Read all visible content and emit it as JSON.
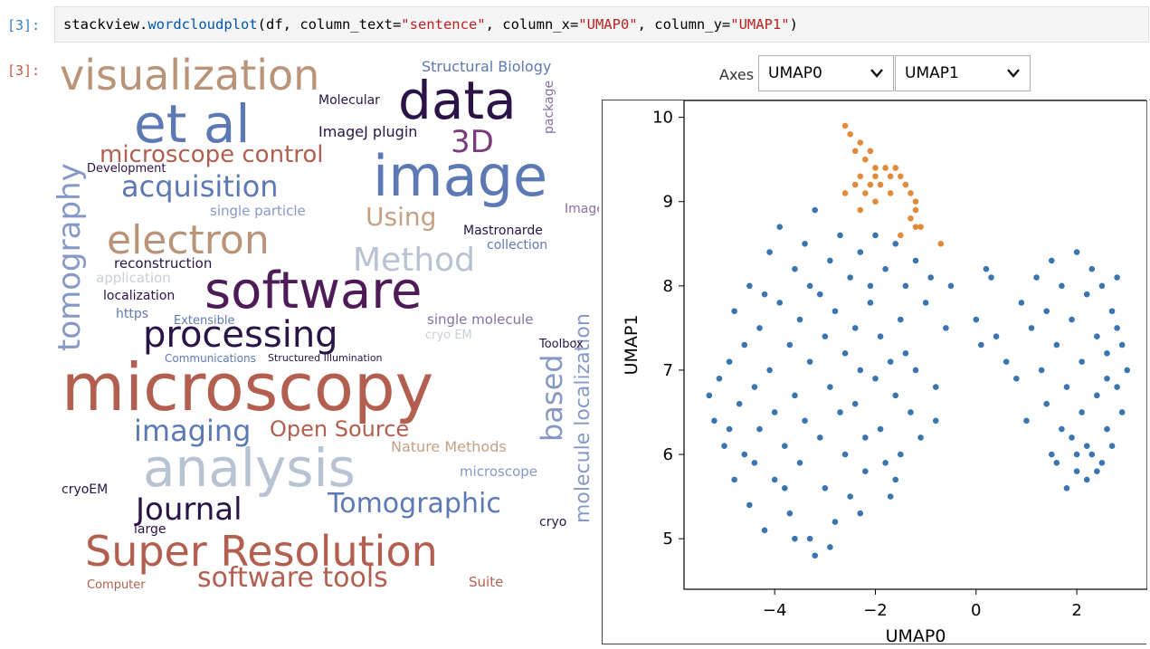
{
  "cells": {
    "input_prompt": "[3]:",
    "output_prompt": "[3]:",
    "code": {
      "p1": "stackview.",
      "p2": "wordcloudplot",
      "p3": "(df, column_text=",
      "p4": "\"sentence\"",
      "p5": ", column_x=",
      "p6": "\"UMAP0\"",
      "p7": ", column_y=",
      "p8": "\"UMAP1\"",
      "p9": ")"
    }
  },
  "axes_widget": {
    "label": "Axes",
    "x_select": "UMAP0",
    "y_select": "UMAP1",
    "chevron_icon": "chevron-down-icon"
  },
  "wordcloud": {
    "words": [
      {
        "text": "visualization",
        "size": 46,
        "color": "#b99478",
        "x": 6,
        "y": 2
      },
      {
        "text": "data",
        "size": 58,
        "color": "#2a1347",
        "x": 380,
        "y": 24
      },
      {
        "text": "et al",
        "size": 58,
        "color": "#5d79b5",
        "x": 88,
        "y": 50
      },
      {
        "text": "3D",
        "size": 34,
        "color": "#7b3a7e",
        "x": 438,
        "y": 82
      },
      {
        "text": "Structural Biology",
        "size": 16,
        "color": "#5d79b5",
        "x": 406,
        "y": 8
      },
      {
        "text": "Molecular",
        "size": 14,
        "color": "#2a1347",
        "x": 292,
        "y": 46
      },
      {
        "text": "package",
        "size": 14,
        "color": "#8a6fa3",
        "x": 540,
        "y": 90,
        "rotate": -90
      },
      {
        "text": "image",
        "size": 62,
        "color": "#5d79b5",
        "x": 352,
        "y": 106
      },
      {
        "text": "ImageJ plugin",
        "size": 16,
        "color": "#2a1347",
        "x": 292,
        "y": 80
      },
      {
        "text": "microscope control",
        "size": 26,
        "color": "#b35f50",
        "x": 50,
        "y": 100
      },
      {
        "text": "acquisition",
        "size": 32,
        "color": "#5d79b5",
        "x": 74,
        "y": 132
      },
      {
        "text": "Development",
        "size": 13,
        "color": "#2a1347",
        "x": 36,
        "y": 122
      },
      {
        "text": "tomography",
        "size": 34,
        "color": "#8699c6",
        "x": 0,
        "y": 330,
        "rotate": -90
      },
      {
        "text": "Using",
        "size": 28,
        "color": "#c6a085",
        "x": 344,
        "y": 168
      },
      {
        "text": "ImageJ",
        "size": 14,
        "color": "#8a6fa3",
        "x": 564,
        "y": 166
      },
      {
        "text": "single particle",
        "size": 15,
        "color": "#8699c6",
        "x": 172,
        "y": 168
      },
      {
        "text": "electron",
        "size": 44,
        "color": "#b99478",
        "x": 58,
        "y": 186
      },
      {
        "text": "Method",
        "size": 36,
        "color": "#b7c2d3",
        "x": 330,
        "y": 212
      },
      {
        "text": "Mastronarde",
        "size": 14,
        "color": "#2a1347",
        "x": 452,
        "y": 190
      },
      {
        "text": "collection",
        "size": 14,
        "color": "#5d79b5",
        "x": 478,
        "y": 206
      },
      {
        "text": "reconstruction",
        "size": 15,
        "color": "#2a1347",
        "x": 66,
        "y": 226
      },
      {
        "text": "application",
        "size": 15,
        "color": "#c9cfd9",
        "x": 46,
        "y": 242
      },
      {
        "text": "software",
        "size": 56,
        "color": "#4e1a58",
        "x": 166,
        "y": 236
      },
      {
        "text": "localization",
        "size": 14,
        "color": "#2a1347",
        "x": 54,
        "y": 262
      },
      {
        "text": "https",
        "size": 14,
        "color": "#5d79b5",
        "x": 68,
        "y": 282
      },
      {
        "text": "molecule localization",
        "size": 22,
        "color": "#8699c6",
        "x": 574,
        "y": 520,
        "rotate": -90
      },
      {
        "text": "processing",
        "size": 40,
        "color": "#2a1347",
        "x": 98,
        "y": 292
      },
      {
        "text": "single molecule",
        "size": 15,
        "color": "#8a6fa3",
        "x": 412,
        "y": 288
      },
      {
        "text": "Extensible",
        "size": 13,
        "color": "#5d79b5",
        "x": 132,
        "y": 290
      },
      {
        "text": "cryo EM",
        "size": 13,
        "color": "#c9cfd9",
        "x": 410,
        "y": 306
      },
      {
        "text": "Toolbox",
        "size": 13,
        "color": "#2a1347",
        "x": 536,
        "y": 316
      },
      {
        "text": "Communications",
        "size": 12,
        "color": "#5d79b5",
        "x": 122,
        "y": 332
      },
      {
        "text": "Structured Illumination",
        "size": 11,
        "color": "#2a1347",
        "x": 236,
        "y": 332
      },
      {
        "text": "microscopy",
        "size": 72,
        "color": "#b35f50",
        "x": 8,
        "y": 334
      },
      {
        "text": "based",
        "size": 32,
        "color": "#8699c6",
        "x": 534,
        "y": 430,
        "rotate": -90
      },
      {
        "text": "imaging",
        "size": 32,
        "color": "#5d79b5",
        "x": 88,
        "y": 402
      },
      {
        "text": "Open Source",
        "size": 24,
        "color": "#b35f50",
        "x": 238,
        "y": 404
      },
      {
        "text": "Nature Methods",
        "size": 16,
        "color": "#c6a085",
        "x": 372,
        "y": 428
      },
      {
        "text": "analysis",
        "size": 58,
        "color": "#b7c2d3",
        "x": 98,
        "y": 430
      },
      {
        "text": "microscope",
        "size": 15,
        "color": "#8699c6",
        "x": 448,
        "y": 456
      },
      {
        "text": "cryoEM",
        "size": 14,
        "color": "#2a1347",
        "x": 8,
        "y": 476
      },
      {
        "text": "Journal",
        "size": 34,
        "color": "#2a1347",
        "x": 90,
        "y": 488
      },
      {
        "text": "Tomographic",
        "size": 30,
        "color": "#5d79b5",
        "x": 302,
        "y": 484
      },
      {
        "text": "cryo",
        "size": 14,
        "color": "#2a1347",
        "x": 536,
        "y": 512
      },
      {
        "text": "large",
        "size": 14,
        "color": "#2a1347",
        "x": 88,
        "y": 520
      },
      {
        "text": "Super Resolution",
        "size": 46,
        "color": "#b35f50",
        "x": 34,
        "y": 528
      },
      {
        "text": "software tools",
        "size": 30,
        "color": "#b35f50",
        "x": 158,
        "y": 566
      },
      {
        "text": "Computer",
        "size": 13,
        "color": "#b35f50",
        "x": 36,
        "y": 582
      },
      {
        "text": "Suite",
        "size": 15,
        "color": "#b35f50",
        "x": 458,
        "y": 578
      }
    ]
  },
  "chart_data": {
    "type": "scatter",
    "xlabel": "UMAP0",
    "ylabel": "UMAP1",
    "xlim": [
      -5.8,
      3.4
    ],
    "ylim": [
      4.4,
      10.2
    ],
    "x_ticks": [
      -4,
      -2,
      0,
      2
    ],
    "y_ticks": [
      5,
      6,
      7,
      8,
      9,
      10
    ],
    "series": [
      {
        "color": "#3a75b0",
        "points": [
          [
            -5.3,
            6.7
          ],
          [
            -5.2,
            6.4
          ],
          [
            -5.1,
            6.9
          ],
          [
            -5.0,
            6.1
          ],
          [
            -4.9,
            7.1
          ],
          [
            -4.8,
            7.7
          ],
          [
            -4.8,
            5.7
          ],
          [
            -4.7,
            6.6
          ],
          [
            -4.6,
            7.3
          ],
          [
            -4.6,
            6.0
          ],
          [
            -4.5,
            8.0
          ],
          [
            -4.5,
            5.4
          ],
          [
            -4.4,
            6.8
          ],
          [
            -4.3,
            7.5
          ],
          [
            -4.3,
            6.3
          ],
          [
            -4.2,
            5.1
          ],
          [
            -4.1,
            8.4
          ],
          [
            -4.1,
            7.0
          ],
          [
            -4.0,
            6.5
          ],
          [
            -4.0,
            5.7
          ],
          [
            -3.9,
            8.7
          ],
          [
            -3.9,
            7.8
          ],
          [
            -3.8,
            6.1
          ],
          [
            -3.7,
            7.3
          ],
          [
            -3.7,
            5.3
          ],
          [
            -3.6,
            8.2
          ],
          [
            -3.6,
            6.7
          ],
          [
            -3.5,
            7.6
          ],
          [
            -3.5,
            5.9
          ],
          [
            -3.4,
            8.5
          ],
          [
            -3.4,
            6.4
          ],
          [
            -3.3,
            7.1
          ],
          [
            -3.3,
            5.0
          ],
          [
            -3.2,
            4.8
          ],
          [
            -3.2,
            8.9
          ],
          [
            -3.1,
            7.9
          ],
          [
            -3.1,
            6.2
          ],
          [
            -3.0,
            7.4
          ],
          [
            -3.0,
            5.6
          ],
          [
            -2.9,
            8.3
          ],
          [
            -2.9,
            6.8
          ],
          [
            -2.8,
            7.7
          ],
          [
            -2.8,
            5.2
          ],
          [
            -2.7,
            8.6
          ],
          [
            -2.7,
            6.5
          ],
          [
            -2.6,
            7.2
          ],
          [
            -2.6,
            6.0
          ],
          [
            -2.5,
            8.1
          ],
          [
            -2.5,
            5.5
          ],
          [
            -2.4,
            7.5
          ],
          [
            -2.4,
            6.6
          ],
          [
            -2.3,
            8.4
          ],
          [
            -2.3,
            7.0
          ],
          [
            -2.2,
            6.2
          ],
          [
            -2.2,
            5.8
          ],
          [
            -2.1,
            7.8
          ],
          [
            -2.0,
            8.6
          ],
          [
            -2.0,
            6.9
          ],
          [
            -1.9,
            7.4
          ],
          [
            -1.9,
            6.3
          ],
          [
            -1.8,
            8.2
          ],
          [
            -1.8,
            5.9
          ],
          [
            -1.7,
            7.1
          ],
          [
            -1.7,
            5.5
          ],
          [
            -1.6,
            8.5
          ],
          [
            -1.6,
            6.7
          ],
          [
            -1.5,
            7.6
          ],
          [
            -1.5,
            6.0
          ],
          [
            -1.4,
            8.0
          ],
          [
            -1.4,
            7.2
          ],
          [
            -1.3,
            6.5
          ],
          [
            -1.2,
            8.3
          ],
          [
            -1.2,
            7.0
          ],
          [
            -1.1,
            6.2
          ],
          [
            -1.0,
            7.8
          ],
          [
            -0.9,
            8.1
          ],
          [
            -0.8,
            6.8
          ],
          [
            -0.8,
            6.4
          ],
          [
            -0.6,
            7.5
          ],
          [
            -0.5,
            8.0
          ],
          [
            -4.9,
            6.3
          ],
          [
            -4.4,
            5.9
          ],
          [
            -3.8,
            5.6
          ],
          [
            -3.6,
            5.0
          ],
          [
            -2.9,
            4.9
          ],
          [
            -2.3,
            5.3
          ],
          [
            -1.6,
            5.7
          ],
          [
            -4.2,
            7.9
          ],
          [
            -3.3,
            8.0
          ],
          [
            -2.1,
            8.0
          ],
          [
            0.0,
            7.6
          ],
          [
            0.1,
            7.3
          ],
          [
            0.2,
            8.2
          ],
          [
            0.4,
            7.4
          ],
          [
            0.3,
            8.1
          ],
          [
            0.6,
            7.1
          ],
          [
            0.8,
            6.9
          ],
          [
            0.9,
            7.8
          ],
          [
            1.1,
            7.5
          ],
          [
            1.0,
            6.4
          ],
          [
            1.2,
            8.1
          ],
          [
            1.3,
            7.0
          ],
          [
            1.4,
            6.6
          ],
          [
            1.5,
            8.3
          ],
          [
            1.5,
            6.0
          ],
          [
            1.6,
            7.3
          ],
          [
            1.6,
            5.9
          ],
          [
            1.7,
            8.0
          ],
          [
            1.8,
            6.8
          ],
          [
            1.8,
            5.6
          ],
          [
            1.9,
            7.6
          ],
          [
            1.9,
            6.2
          ],
          [
            2.0,
            8.4
          ],
          [
            2.0,
            5.8
          ],
          [
            2.1,
            7.1
          ],
          [
            2.1,
            6.5
          ],
          [
            2.2,
            7.9
          ],
          [
            2.2,
            5.7
          ],
          [
            2.3,
            8.2
          ],
          [
            2.3,
            6.0
          ],
          [
            2.4,
            7.4
          ],
          [
            2.4,
            6.7
          ],
          [
            2.5,
            8.0
          ],
          [
            2.5,
            5.9
          ],
          [
            2.6,
            7.2
          ],
          [
            2.6,
            6.3
          ],
          [
            2.7,
            7.7
          ],
          [
            2.7,
            6.1
          ],
          [
            2.8,
            8.1
          ],
          [
            2.8,
            6.8
          ],
          [
            2.9,
            7.3
          ],
          [
            2.9,
            6.5
          ],
          [
            3.0,
            7.0
          ],
          [
            2.2,
            6.1
          ],
          [
            2.4,
            5.8
          ],
          [
            2.0,
            6.0
          ],
          [
            1.7,
            6.3
          ],
          [
            2.6,
            6.9
          ],
          [
            2.8,
            7.5
          ],
          [
            1.4,
            7.7
          ]
        ]
      },
      {
        "color": "#e08a3a",
        "points": [
          [
            -2.6,
            9.9
          ],
          [
            -2.5,
            9.8
          ],
          [
            -2.4,
            9.6
          ],
          [
            -2.3,
            9.7
          ],
          [
            -2.2,
            9.5
          ],
          [
            -2.1,
            9.6
          ],
          [
            -2.0,
            9.4
          ],
          [
            -2.4,
            9.2
          ],
          [
            -2.3,
            9.3
          ],
          [
            -2.2,
            9.1
          ],
          [
            -2.1,
            9.2
          ],
          [
            -2.0,
            9.3
          ],
          [
            -1.9,
            9.2
          ],
          [
            -1.8,
            9.4
          ],
          [
            -1.7,
            9.3
          ],
          [
            -1.6,
            9.4
          ],
          [
            -1.5,
            9.3
          ],
          [
            -1.4,
            9.2
          ],
          [
            -1.3,
            9.1
          ],
          [
            -1.2,
            9.0
          ],
          [
            -1.2,
            8.9
          ],
          [
            -1.3,
            8.8
          ],
          [
            -1.1,
            8.7
          ],
          [
            -1.2,
            8.7
          ],
          [
            -1.5,
            8.6
          ],
          [
            -2.6,
            9.1
          ],
          [
            -2.3,
            8.9
          ],
          [
            -2.0,
            9.0
          ],
          [
            -1.7,
            9.1
          ],
          [
            -0.7,
            8.5
          ]
        ]
      }
    ]
  }
}
